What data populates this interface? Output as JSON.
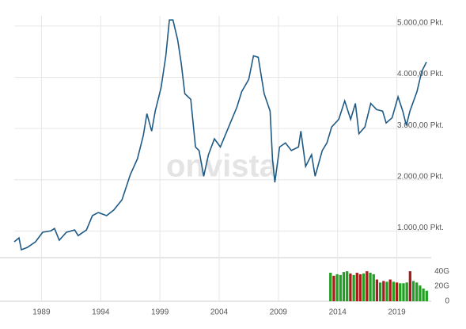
{
  "chart_data": [
    {
      "type": "line",
      "watermark": "onvista",
      "color": "#1f5a85",
      "grid": true,
      "xlim": [
        1986.7,
        2021.9
      ],
      "xticks": [
        1989,
        1994,
        1999,
        2004,
        2009,
        2014,
        2019
      ],
      "ylim": [
        480,
        5200
      ],
      "yticks": [
        {
          "value": 1000,
          "label": "1.000,00 Pkt."
        },
        {
          "value": 2000,
          "label": "2.000,00 Pkt."
        },
        {
          "value": 3000,
          "label": "3.000,00 Pkt."
        },
        {
          "value": 4000,
          "label": "4.000,00 Pkt."
        },
        {
          "value": 5000,
          "label": "5.000,00 Pkt."
        }
      ],
      "x": [
        1986.7,
        1987.1,
        1987.3,
        1987.8,
        1988.5,
        1989.1,
        1989.8,
        1990.1,
        1990.5,
        1991.1,
        1991.8,
        1992.1,
        1992.8,
        1993.3,
        1993.8,
        1994.5,
        1995.1,
        1995.8,
        1996.5,
        1997.1,
        1997.6,
        1997.9,
        1998.3,
        1998.6,
        1999.1,
        1999.5,
        1999.8,
        2000.1,
        2000.5,
        2000.8,
        2001.1,
        2001.6,
        2002.0,
        2002.3,
        2002.7,
        2003.1,
        2003.6,
        2004.1,
        2004.8,
        2005.5,
        2005.9,
        2006.5,
        2006.9,
        2007.3,
        2007.8,
        2008.3,
        2008.5,
        2008.7,
        2009.1,
        2009.6,
        2010.1,
        2010.7,
        2010.9,
        2011.3,
        2011.8,
        2012.1,
        2012.7,
        2013.1,
        2013.5,
        2014.1,
        2014.6,
        2015.1,
        2015.5,
        2015.8,
        2016.3,
        2016.8,
        2017.3,
        2017.8,
        2018.1,
        2018.6,
        2019.1,
        2019.5,
        2019.8,
        2020.1,
        2020.7,
        2021.1,
        2021.5
      ],
      "values": [
        790,
        865,
        635,
        680,
        790,
        975,
        1005,
        1050,
        820,
        975,
        1020,
        910,
        1020,
        1300,
        1360,
        1300,
        1410,
        1610,
        2100,
        2410,
        2870,
        3290,
        2950,
        3340,
        3800,
        4420,
        5120,
        5120,
        4730,
        4270,
        3680,
        3570,
        2640,
        2570,
        2070,
        2490,
        2800,
        2640,
        3030,
        3420,
        3720,
        3960,
        4420,
        4390,
        3680,
        3340,
        2410,
        1950,
        2640,
        2720,
        2570,
        2640,
        2950,
        2260,
        2490,
        2070,
        2570,
        2720,
        3030,
        3180,
        3540,
        3180,
        3490,
        2900,
        3030,
        3490,
        3370,
        3340,
        3110,
        3210,
        3620,
        3340,
        3060,
        3340,
        3720,
        4110,
        4300
      ]
    },
    {
      "type": "bar",
      "xlim": [
        1986.7,
        2021.9
      ],
      "ylim": [
        0,
        56
      ],
      "yticks": [
        0,
        {
          "value": 20,
          "label": "20G"
        },
        {
          "value": 40,
          "label": "40G"
        }
      ],
      "x": [
        2013.4,
        2013.68,
        2013.96,
        2014.24,
        2014.52,
        2014.8,
        2015.08,
        2015.36,
        2015.64,
        2015.92,
        2016.2,
        2016.48,
        2016.76,
        2017.04,
        2017.32,
        2017.6,
        2017.88,
        2018.16,
        2018.44,
        2018.72,
        2019.0,
        2019.28,
        2019.56,
        2019.84,
        2020.12,
        2020.4,
        2020.68,
        2020.96,
        2021.24,
        2021.52
      ],
      "values": [
        38,
        34,
        36,
        35,
        39,
        40,
        37,
        35,
        38,
        36,
        37,
        40,
        38,
        36,
        29,
        25,
        27,
        26,
        29,
        26,
        25,
        24,
        24,
        25,
        40,
        27,
        25,
        21,
        17,
        14
      ],
      "colors": [
        "#22a022",
        "#aa1c1c",
        "#22a022",
        "#22a022",
        "#22a022",
        "#22a022",
        "#aa1c1c",
        "#22a022",
        "#aa1c1c",
        "#aa1c1c",
        "#22a022",
        "#aa1c1c",
        "#22a022",
        "#22a022",
        "#aa1c1c",
        "#22a022",
        "#aa1c1c",
        "#22a022",
        "#aa1c1c",
        "#22a022",
        "#aa1c1c",
        "#22a022",
        "#22a022",
        "#22a022",
        "#aa1c1c",
        "#22a022",
        "#22a022",
        "#22a022",
        "#22a022",
        "#22a022"
      ]
    }
  ]
}
